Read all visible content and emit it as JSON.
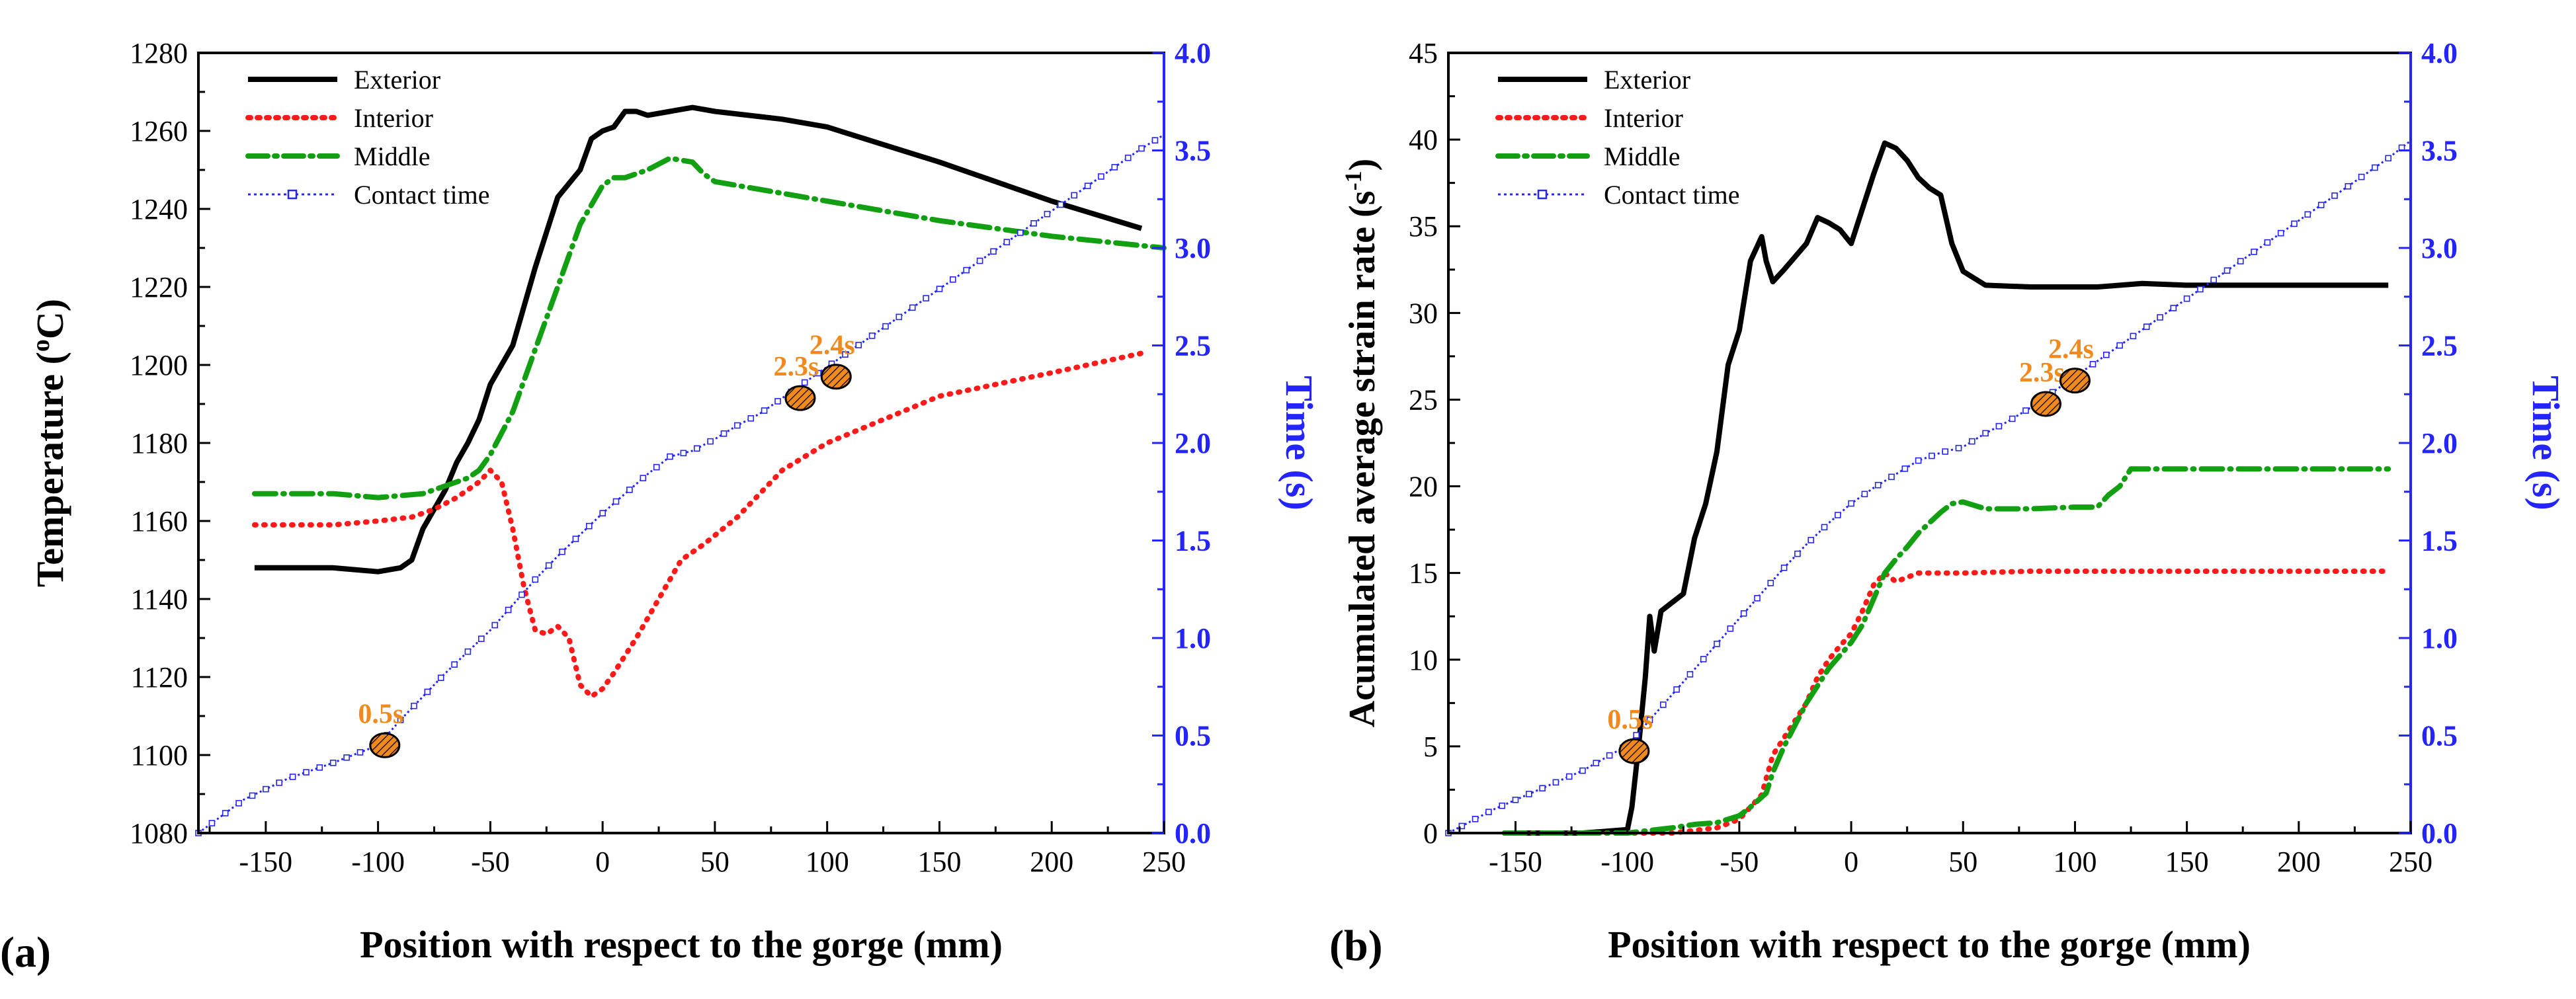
{
  "figure": {
    "x_axis_label": "Position with respect to the gorge (mm)",
    "right_axis_label": "Time (s)"
  },
  "colors": {
    "exterior": "#000000",
    "interior": "#ff1a1a",
    "middle": "#12a012",
    "contact": "#2424ff",
    "marker_fill": "#f08a1e",
    "marker_label": "#f08a1e",
    "right_axis": "#2424ff"
  },
  "chart_data": [
    {
      "panel_label": "(a)",
      "type": "line",
      "xlabel": "Position with respect to the gorge (mm)",
      "ylabel": "Temperature (oC)",
      "ylabel_parts": {
        "main": "Temperature (",
        "sup": "o",
        "unit": "C)"
      },
      "y2label": "Time (s)",
      "xlim": [
        -180,
        250
      ],
      "xticks": [
        -150,
        -100,
        -50,
        0,
        50,
        100,
        150,
        200,
        250
      ],
      "ylim": [
        1080,
        1280
      ],
      "yticks": [
        1080,
        1100,
        1120,
        1140,
        1160,
        1180,
        1200,
        1220,
        1240,
        1260,
        1280
      ],
      "y2lim": [
        0,
        4
      ],
      "y2ticks": [
        "0.0",
        "0.5",
        "1.0",
        "1.5",
        "2.0",
        "2.5",
        "3.0",
        "3.5",
        "4.0"
      ],
      "legend": {
        "position": "top-left",
        "entries": [
          "Exterior",
          "Interior",
          "Middle",
          "Contact time"
        ]
      },
      "series": [
        {
          "name": "Exterior",
          "key": "exterior",
          "axis": "left",
          "x": [
            -155,
            -120,
            -100,
            -90,
            -85,
            -80,
            -75,
            -70,
            -65,
            -60,
            -55,
            -50,
            -40,
            -30,
            -20,
            -10,
            -5,
            0,
            5,
            10,
            15,
            20,
            30,
            40,
            50,
            80,
            100,
            150,
            200,
            240
          ],
          "y": [
            1148,
            1148,
            1147,
            1148,
            1150,
            1158,
            1163,
            1168,
            1175,
            1180,
            1186,
            1195,
            1205,
            1225,
            1243,
            1250,
            1258,
            1260,
            1261,
            1265,
            1265,
            1264,
            1265,
            1266,
            1265,
            1263,
            1261,
            1252,
            1242,
            1235
          ]
        },
        {
          "name": "Interior",
          "key": "interior",
          "axis": "left",
          "x": [
            -155,
            -120,
            -100,
            -85,
            -75,
            -65,
            -55,
            -50,
            -45,
            -40,
            -35,
            -30,
            -25,
            -20,
            -15,
            -10,
            -5,
            0,
            5,
            15,
            25,
            35,
            45,
            60,
            80,
            100,
            150,
            200,
            240
          ],
          "y": [
            1159,
            1159,
            1160,
            1161,
            1163,
            1166,
            1170,
            1173,
            1170,
            1158,
            1143,
            1132,
            1131,
            1133,
            1130,
            1118,
            1115,
            1117,
            1121,
            1130,
            1140,
            1150,
            1154,
            1161,
            1173,
            1180,
            1192,
            1198,
            1203
          ]
        },
        {
          "name": "Middle",
          "key": "middle",
          "axis": "left",
          "x": [
            -155,
            -120,
            -100,
            -80,
            -70,
            -60,
            -55,
            -50,
            -40,
            -30,
            -20,
            -10,
            0,
            5,
            10,
            20,
            30,
            40,
            45,
            50,
            60,
            100,
            150,
            200,
            250
          ],
          "y": [
            1167,
            1167,
            1166,
            1167,
            1169,
            1171,
            1173,
            1177,
            1188,
            1204,
            1220,
            1236,
            1246,
            1248,
            1248,
            1250,
            1253,
            1252,
            1249,
            1247,
            1246,
            1242,
            1237,
            1233,
            1230
          ]
        },
        {
          "name": "Contact time",
          "key": "contact",
          "axis": "right",
          "x": [
            -180,
            -160,
            -140,
            -120,
            -100,
            -90,
            -80,
            -70,
            -60,
            -50,
            -40,
            -30,
            -20,
            -10,
            0,
            10,
            20,
            30,
            40,
            50,
            60,
            70,
            80,
            90,
            100,
            120,
            140,
            160,
            180,
            200,
            220,
            240,
            250
          ],
          "y": [
            0.0,
            0.17,
            0.28,
            0.36,
            0.45,
            0.58,
            0.7,
            0.82,
            0.93,
            1.04,
            1.17,
            1.3,
            1.42,
            1.53,
            1.64,
            1.74,
            1.84,
            1.93,
            1.96,
            2.02,
            2.09,
            2.15,
            2.23,
            2.31,
            2.39,
            2.55,
            2.71,
            2.87,
            3.03,
            3.19,
            3.35,
            3.51,
            3.58
          ]
        }
      ],
      "markers": [
        {
          "x": -97,
          "t": 0.45,
          "label": "0.5s"
        },
        {
          "x": 88,
          "t": 2.23,
          "label": "2.3s"
        },
        {
          "x": 104,
          "t": 2.34,
          "label": "2.4s"
        }
      ]
    },
    {
      "panel_label": "(b)",
      "type": "line",
      "xlabel": "Position with respect to the gorge (mm)",
      "ylabel": "Acumulated average strain rate (s-1)",
      "ylabel_parts": {
        "main": "Acumulated average strain rate (s",
        "sup": "-1",
        "unit": ")"
      },
      "y2label": "Time (s)",
      "xlim": [
        -180,
        250
      ],
      "xticks": [
        -150,
        -100,
        -50,
        0,
        50,
        100,
        150,
        200,
        250
      ],
      "ylim": [
        0,
        45
      ],
      "yticks": [
        0,
        5,
        10,
        15,
        20,
        25,
        30,
        35,
        40,
        45
      ],
      "y2lim": [
        0,
        4
      ],
      "y2ticks": [
        "0.0",
        "0.5",
        "1.0",
        "1.5",
        "2.0",
        "2.5",
        "3.0",
        "3.5",
        "4.0"
      ],
      "legend": {
        "position": "top-left",
        "entries": [
          "Exterior",
          "Interior",
          "Middle",
          "Contact time"
        ]
      },
      "series": [
        {
          "name": "Exterior",
          "key": "exterior",
          "axis": "left",
          "x": [
            -155,
            -120,
            -100,
            -98,
            -95,
            -92,
            -90,
            -88,
            -85,
            -80,
            -75,
            -70,
            -65,
            -60,
            -55,
            -50,
            -45,
            -40,
            -38,
            -35,
            -30,
            -20,
            -15,
            -10,
            -5,
            0,
            5,
            10,
            15,
            20,
            25,
            30,
            35,
            40,
            45,
            50,
            60,
            80,
            100,
            110,
            130,
            150,
            200,
            240
          ],
          "y": [
            0,
            0,
            0.2,
            1.5,
            5,
            9,
            12.5,
            10.5,
            12.8,
            13.3,
            13.8,
            17,
            19,
            22,
            27,
            29,
            33,
            34.4,
            33,
            31.8,
            32.5,
            34,
            35.5,
            35.2,
            34.8,
            34,
            36,
            38,
            39.8,
            39.5,
            38.8,
            37.8,
            37.2,
            36.8,
            34,
            32.4,
            31.6,
            31.5,
            31.5,
            31.5,
            31.7,
            31.6,
            31.6,
            31.6
          ]
        },
        {
          "name": "Interior",
          "key": "interior",
          "axis": "left",
          "x": [
            -155,
            -100,
            -80,
            -60,
            -50,
            -45,
            -40,
            -35,
            -30,
            -25,
            -20,
            -15,
            -10,
            -5,
            0,
            5,
            10,
            15,
            20,
            30,
            50,
            80,
            150,
            240
          ],
          "y": [
            0,
            0,
            0,
            0.3,
            0.8,
            1.5,
            2.2,
            4.5,
            5.5,
            6.5,
            7.5,
            9,
            10,
            10.8,
            11.5,
            12.8,
            14.3,
            15,
            14.5,
            15,
            15,
            15.1,
            15.1,
            15.1
          ]
        },
        {
          "name": "Middle",
          "key": "middle",
          "axis": "left",
          "x": [
            -155,
            -100,
            -80,
            -70,
            -60,
            -50,
            -45,
            -38,
            -35,
            -30,
            -20,
            -10,
            0,
            5,
            10,
            15,
            20,
            25,
            30,
            40,
            45,
            50,
            60,
            70,
            80,
            100,
            110,
            115,
            120,
            125,
            130,
            150,
            200,
            240
          ],
          "y": [
            0,
            0,
            0.3,
            0.5,
            0.6,
            1.0,
            1.5,
            2.3,
            3.5,
            5,
            7.5,
            9.5,
            11,
            12,
            13.5,
            15,
            15.8,
            16.5,
            17.3,
            18.5,
            19,
            19.1,
            18.7,
            18.7,
            18.7,
            18.8,
            18.8,
            19.5,
            20,
            21,
            21,
            21,
            21,
            21
          ]
        },
        {
          "name": "Contact time",
          "key": "contact",
          "axis": "right",
          "x": [
            -180,
            -160,
            -140,
            -120,
            -100,
            -90,
            -80,
            -70,
            -60,
            -50,
            -40,
            -30,
            -20,
            -10,
            0,
            10,
            20,
            30,
            40,
            50,
            60,
            70,
            80,
            90,
            100,
            120,
            140,
            160,
            180,
            200,
            220,
            240,
            250
          ],
          "y": [
            0.0,
            0.12,
            0.22,
            0.32,
            0.45,
            0.58,
            0.71,
            0.84,
            0.97,
            1.1,
            1.23,
            1.36,
            1.48,
            1.59,
            1.69,
            1.77,
            1.84,
            1.91,
            1.95,
            1.98,
            2.05,
            2.11,
            2.18,
            2.26,
            2.34,
            2.5,
            2.66,
            2.82,
            2.98,
            3.14,
            3.3,
            3.46,
            3.55
          ]
        }
      ],
      "markers": [
        {
          "x": -97,
          "t": 0.42,
          "label": "0.5s"
        },
        {
          "x": 87,
          "t": 2.2,
          "label": "2.3s"
        },
        {
          "x": 100,
          "t": 2.32,
          "label": "2.4s"
        }
      ]
    }
  ]
}
